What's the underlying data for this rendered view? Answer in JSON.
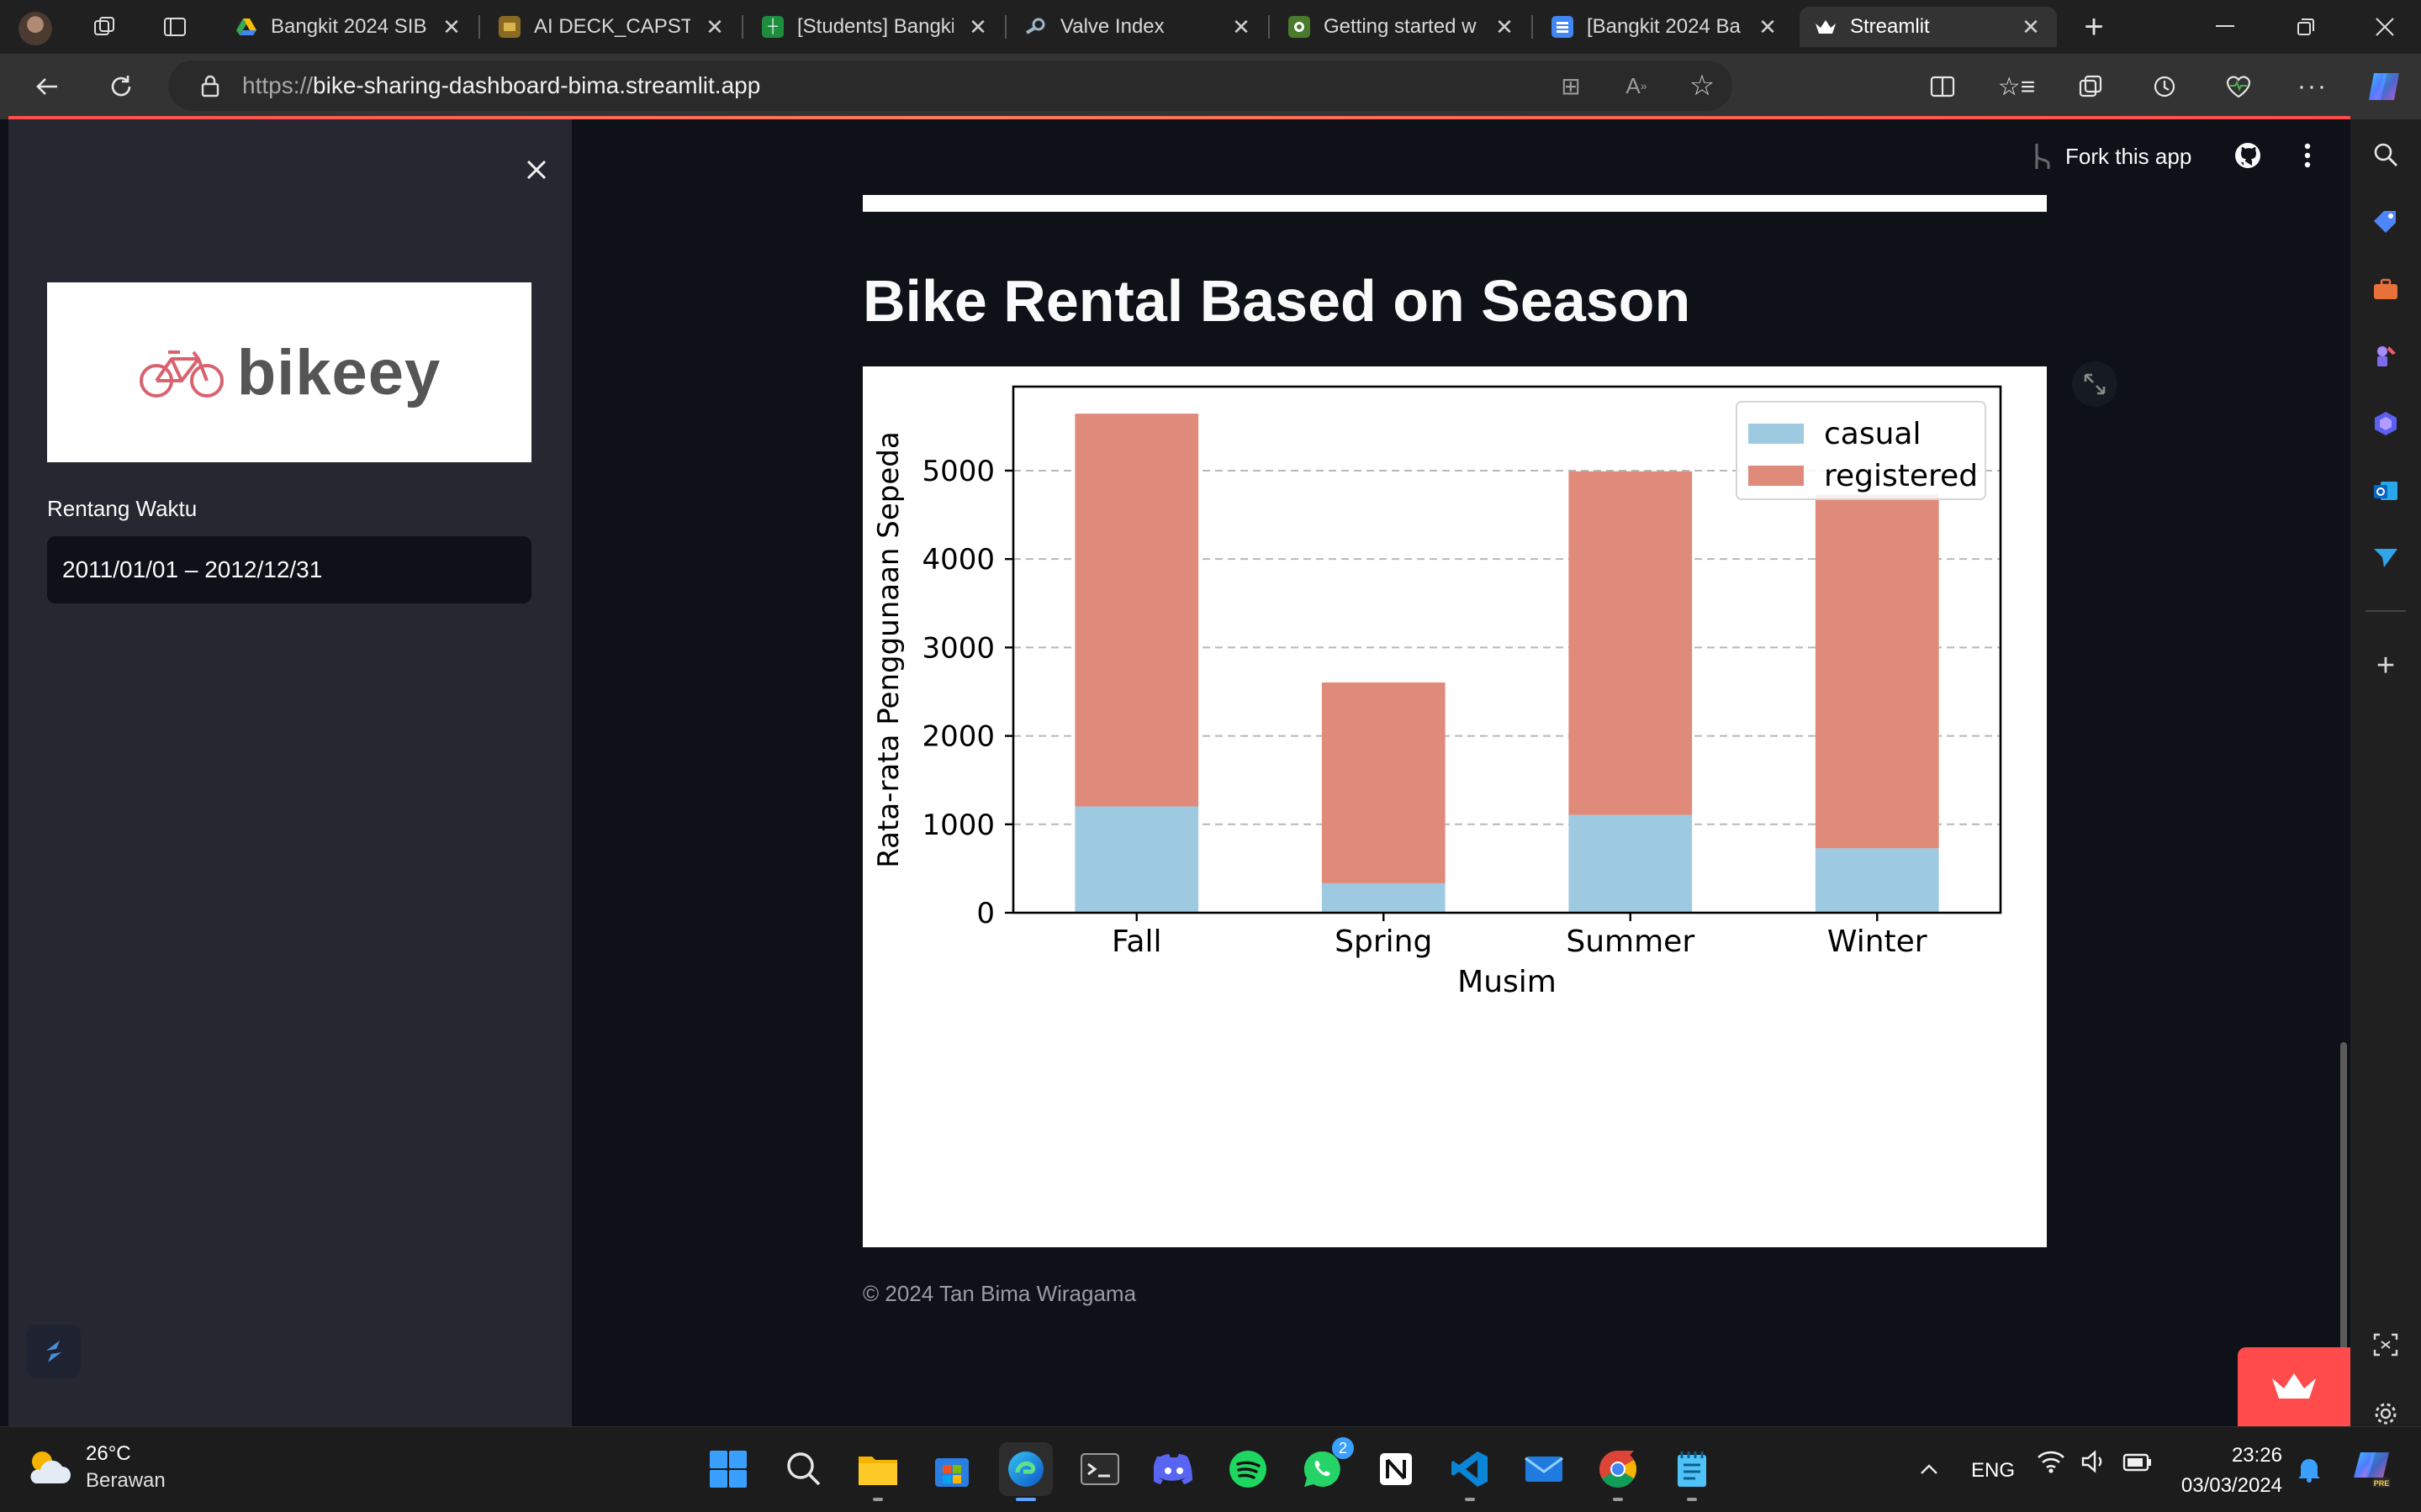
{
  "browser": {
    "tabs": [
      {
        "title": "Bangkit 2024 SIB",
        "icon": "google-drive-icon",
        "color": "#34a853"
      },
      {
        "title": "AI DECK_CAPSTONE",
        "icon": "slides-icon",
        "color": "#c99a2e"
      },
      {
        "title": "[Students] Bangkit",
        "icon": "sheets-icon",
        "color": "#1e8e3e"
      },
      {
        "title": "Valve Index",
        "icon": "steam-icon",
        "color": "#1b2838"
      },
      {
        "title": "Getting started w",
        "icon": "streamlit-docs-icon",
        "color": "#4a7a2c"
      },
      {
        "title": "[Bangkit 2024 Ba",
        "icon": "docs-icon",
        "color": "#4285f4"
      },
      {
        "title": "Streamlit",
        "icon": "streamlit-crown-icon",
        "color": "#ffffff"
      }
    ],
    "url_prefix": "https://",
    "url_host": "bike-sharing-dashboard-bima.streamlit.app"
  },
  "sidebar": {
    "logo_text": "bikeey",
    "date_label": "Rentang Waktu",
    "date_value": "2011/01/01 – 2012/12/31"
  },
  "header": {
    "fork_label": "Fork this app"
  },
  "main": {
    "title": "Bike Rental Based on Season",
    "footer": "© 2024 Tan Bima Wiragama"
  },
  "chart_data": {
    "type": "bar",
    "stacked": true,
    "categories": [
      "Fall",
      "Spring",
      "Summer",
      "Winter"
    ],
    "series": [
      {
        "name": "casual",
        "values": [
          1202,
          334,
          1106,
          729
        ],
        "color": "#9ecae1"
      },
      {
        "name": "registered",
        "values": [
          4442,
          2270,
          3886,
          3999
        ],
        "color": "#e08a7a"
      }
    ],
    "xlabel": "Musim",
    "ylabel": "Rata-rata Penggunaan Sepeda",
    "ylim": [
      0,
      5950
    ],
    "yticks": [
      0,
      1000,
      2000,
      3000,
      4000,
      5000
    ],
    "grid": "y-dashed",
    "legend": "top-right"
  },
  "taskbar": {
    "weather_temp": "26°C",
    "weather_desc": "Berawan",
    "lang": "ENG",
    "time": "23:26",
    "date": "03/03/2024",
    "whatsapp_badge": "2"
  }
}
